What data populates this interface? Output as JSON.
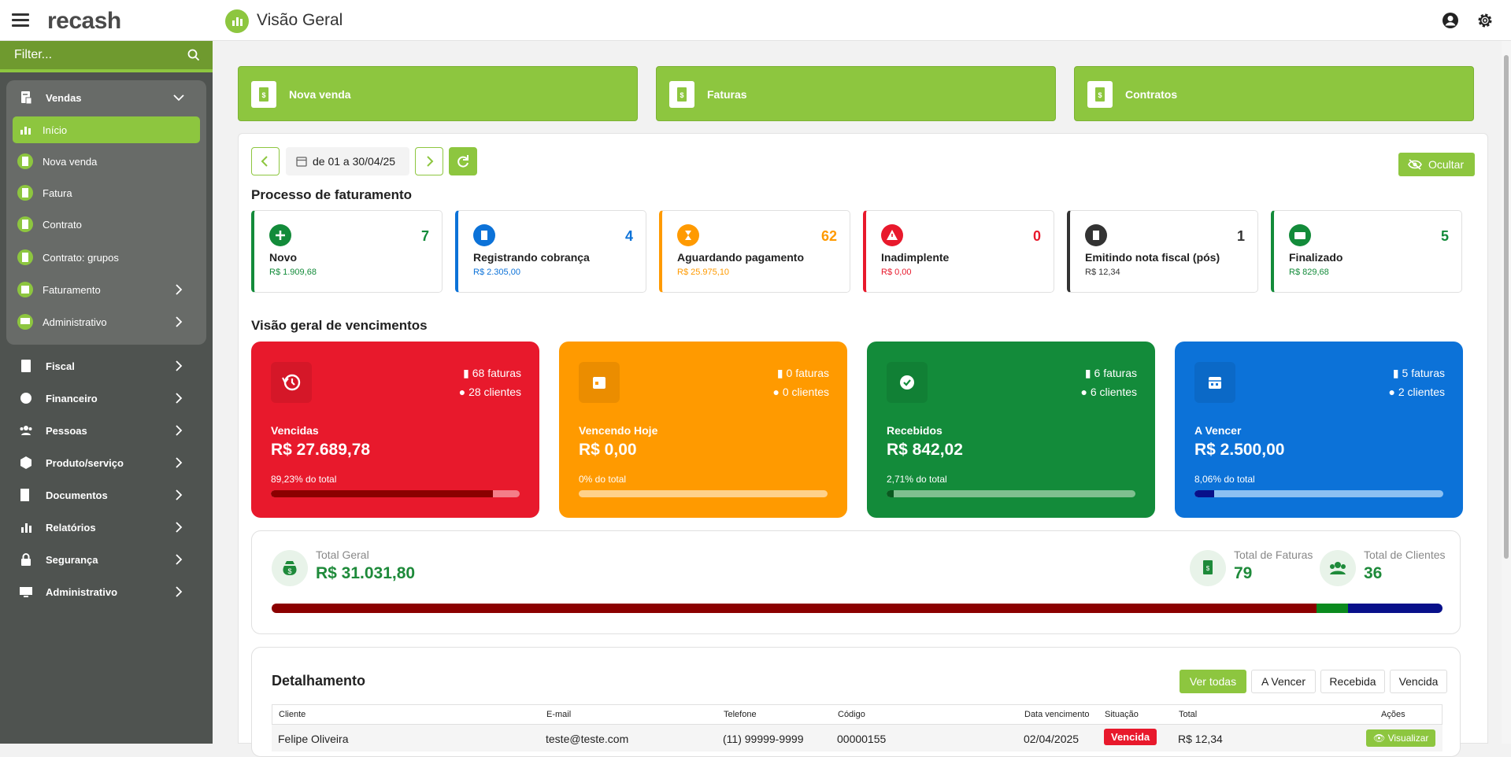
{
  "app": {
    "logo": "recash",
    "page_title": "Visão Geral"
  },
  "colors": {
    "accent": "#8dc63f",
    "sidebar": "#4f5350",
    "red": "#e8192c",
    "orange": "#ff9a00",
    "green": "#138b3a",
    "blue": "#0c72d8"
  },
  "sidebar": {
    "filter_placeholder": "Filter...",
    "vendas": {
      "label": "Vendas",
      "icon": "receipt-icon"
    },
    "vendas_items": [
      {
        "label": "Início",
        "icon": "chart-icon"
      },
      {
        "label": "Nova venda",
        "icon": "invoice-icon"
      },
      {
        "label": "Fatura",
        "icon": "invoice-icon"
      },
      {
        "label": "Contrato",
        "icon": "document-icon"
      },
      {
        "label": "Contrato: grupos",
        "icon": "document-icon"
      },
      {
        "label": "Faturamento",
        "icon": "billing-icon"
      },
      {
        "label": "Administrativo",
        "icon": "admin-icon"
      }
    ],
    "items": [
      {
        "label": "Fiscal",
        "icon": "fiscal-icon"
      },
      {
        "label": "Financeiro",
        "icon": "finance-icon"
      },
      {
        "label": "Pessoas",
        "icon": "people-icon"
      },
      {
        "label": "Produto/serviço",
        "icon": "product-icon"
      },
      {
        "label": "Documentos",
        "icon": "documents-icon"
      },
      {
        "label": "Relatórios",
        "icon": "reports-icon"
      },
      {
        "label": "Segurança",
        "icon": "lock-icon"
      },
      {
        "label": "Administrativo",
        "icon": "admin-icon"
      }
    ]
  },
  "quick_actions": [
    {
      "label": "Nova venda"
    },
    {
      "label": "Faturas"
    },
    {
      "label": "Contratos"
    }
  ],
  "period": {
    "label": "de 01 a 30/04/25",
    "hide_label": "Ocultar"
  },
  "processo": {
    "title": "Processo de faturamento",
    "items": [
      {
        "name": "Novo",
        "count": "7",
        "value": "R$ 1.909,68",
        "color": "#138b3a"
      },
      {
        "name": "Registrando cobrança",
        "count": "4",
        "value": "R$ 2.305,00",
        "color": "#0c72d8"
      },
      {
        "name": "Aguardando pagamento",
        "count": "62",
        "value": "R$ 25.975,10",
        "color": "#ff9a00"
      },
      {
        "name": "Inadimplente",
        "count": "0",
        "value": "R$ 0,00",
        "color": "#e8192c"
      },
      {
        "name": "Emitindo nota fiscal (pós)",
        "count": "1",
        "value": "R$ 12,34",
        "color": "#333333"
      },
      {
        "name": "Finalizado",
        "count": "5",
        "value": "R$ 829,68",
        "color": "#138b3a"
      }
    ]
  },
  "vencimentos": {
    "title": "Visão geral de vencimentos",
    "items": [
      {
        "name": "Vencidas",
        "value": "R$ 27.689,78",
        "faturas": "68 faturas",
        "clientes": "28 clientes",
        "pct_label": "89,23% do total",
        "pct": 0.8923,
        "color": "#e8192c"
      },
      {
        "name": "Vencendo Hoje",
        "value": "R$ 0,00",
        "faturas": "0 faturas",
        "clientes": "0 clientes",
        "pct_label": "0% do total",
        "pct": 0,
        "color": "#ff9a00"
      },
      {
        "name": "Recebidos",
        "value": "R$ 842,02",
        "faturas": "6 faturas",
        "clientes": "6 clientes",
        "pct_label": "2,71% do total",
        "pct": 0.0271,
        "color": "#138b3a"
      },
      {
        "name": "A Vencer",
        "value": "R$ 2.500,00",
        "faturas": "5 faturas",
        "clientes": "2 clientes",
        "pct_label": "8,06% do total",
        "pct": 0.0806,
        "color": "#0c72d8"
      }
    ]
  },
  "totals": {
    "geral_label": "Total Geral",
    "geral_value": "R$ 31.031,80",
    "faturas_label": "Total de Faturas",
    "faturas_value": "79",
    "clientes_label": "Total de Clientes",
    "clientes_value": "36",
    "bar_segments": [
      0.8923,
      0.0271,
      0.0806
    ]
  },
  "detalhamento": {
    "title": "Detalhamento",
    "filters": [
      "Ver todas",
      "A Vencer",
      "Recebida",
      "Vencida"
    ],
    "columns": [
      "Cliente",
      "E-mail",
      "Telefone",
      "Código",
      "Data vencimento",
      "Situação",
      "Total",
      "Ações"
    ],
    "rows": [
      {
        "cliente": "Felipe Oliveira",
        "email": "teste@teste.com",
        "telefone": "(11) 99999-9999",
        "codigo": "00000155",
        "vencimento": "02/04/2025",
        "situacao": "Vencida",
        "total": "R$ 12,34",
        "acao": "Visualizar"
      }
    ]
  }
}
